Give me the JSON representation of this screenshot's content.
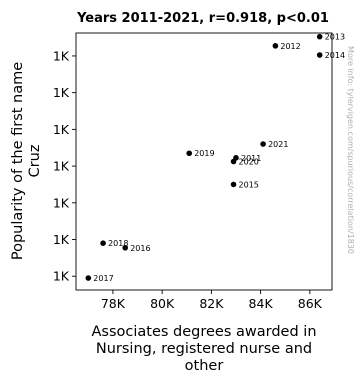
{
  "chart_data": {
    "type": "scatter",
    "title": "Years 2011-2021, r=0.918, p<0.01",
    "xlabel": [
      "Associates degrees awarded in",
      "Nursing, registered nurse and",
      "other"
    ],
    "ylabel": [
      "Popularity of the first name",
      "Cruz"
    ],
    "xlim": [
      76500,
      86900
    ],
    "ylim": [
      725,
      1005
    ],
    "x_ticks": [
      {
        "value": 78000,
        "label": "78K"
      },
      {
        "value": 80000,
        "label": "80K"
      },
      {
        "value": 82000,
        "label": "82K"
      },
      {
        "value": 84000,
        "label": "84K"
      },
      {
        "value": 86000,
        "label": "86K"
      }
    ],
    "y_ticks": [
      {
        "value": 740,
        "label": "1K"
      },
      {
        "value": 780,
        "label": "1K"
      },
      {
        "value": 820,
        "label": "1K"
      },
      {
        "value": 860,
        "label": "1K"
      },
      {
        "value": 900,
        "label": "1K"
      },
      {
        "value": 940,
        "label": "1K"
      },
      {
        "value": 980,
        "label": "1K"
      }
    ],
    "points": [
      {
        "label": "2011",
        "x": 83000,
        "y": 869
      },
      {
        "label": "2012",
        "x": 84600,
        "y": 991
      },
      {
        "label": "2013",
        "x": 86400,
        "y": 1001
      },
      {
        "label": "2014",
        "x": 86400,
        "y": 981
      },
      {
        "label": "2015",
        "x": 82900,
        "y": 840
      },
      {
        "label": "2016",
        "x": 78500,
        "y": 771
      },
      {
        "label": "2017",
        "x": 77000,
        "y": 738
      },
      {
        "label": "2018",
        "x": 77600,
        "y": 776
      },
      {
        "label": "2019",
        "x": 81100,
        "y": 874
      },
      {
        "label": "2020",
        "x": 82900,
        "y": 865
      },
      {
        "label": "2021",
        "x": 84100,
        "y": 884
      }
    ],
    "watermark": "More info: tylervigen.com/spurious/correlation/1830"
  }
}
